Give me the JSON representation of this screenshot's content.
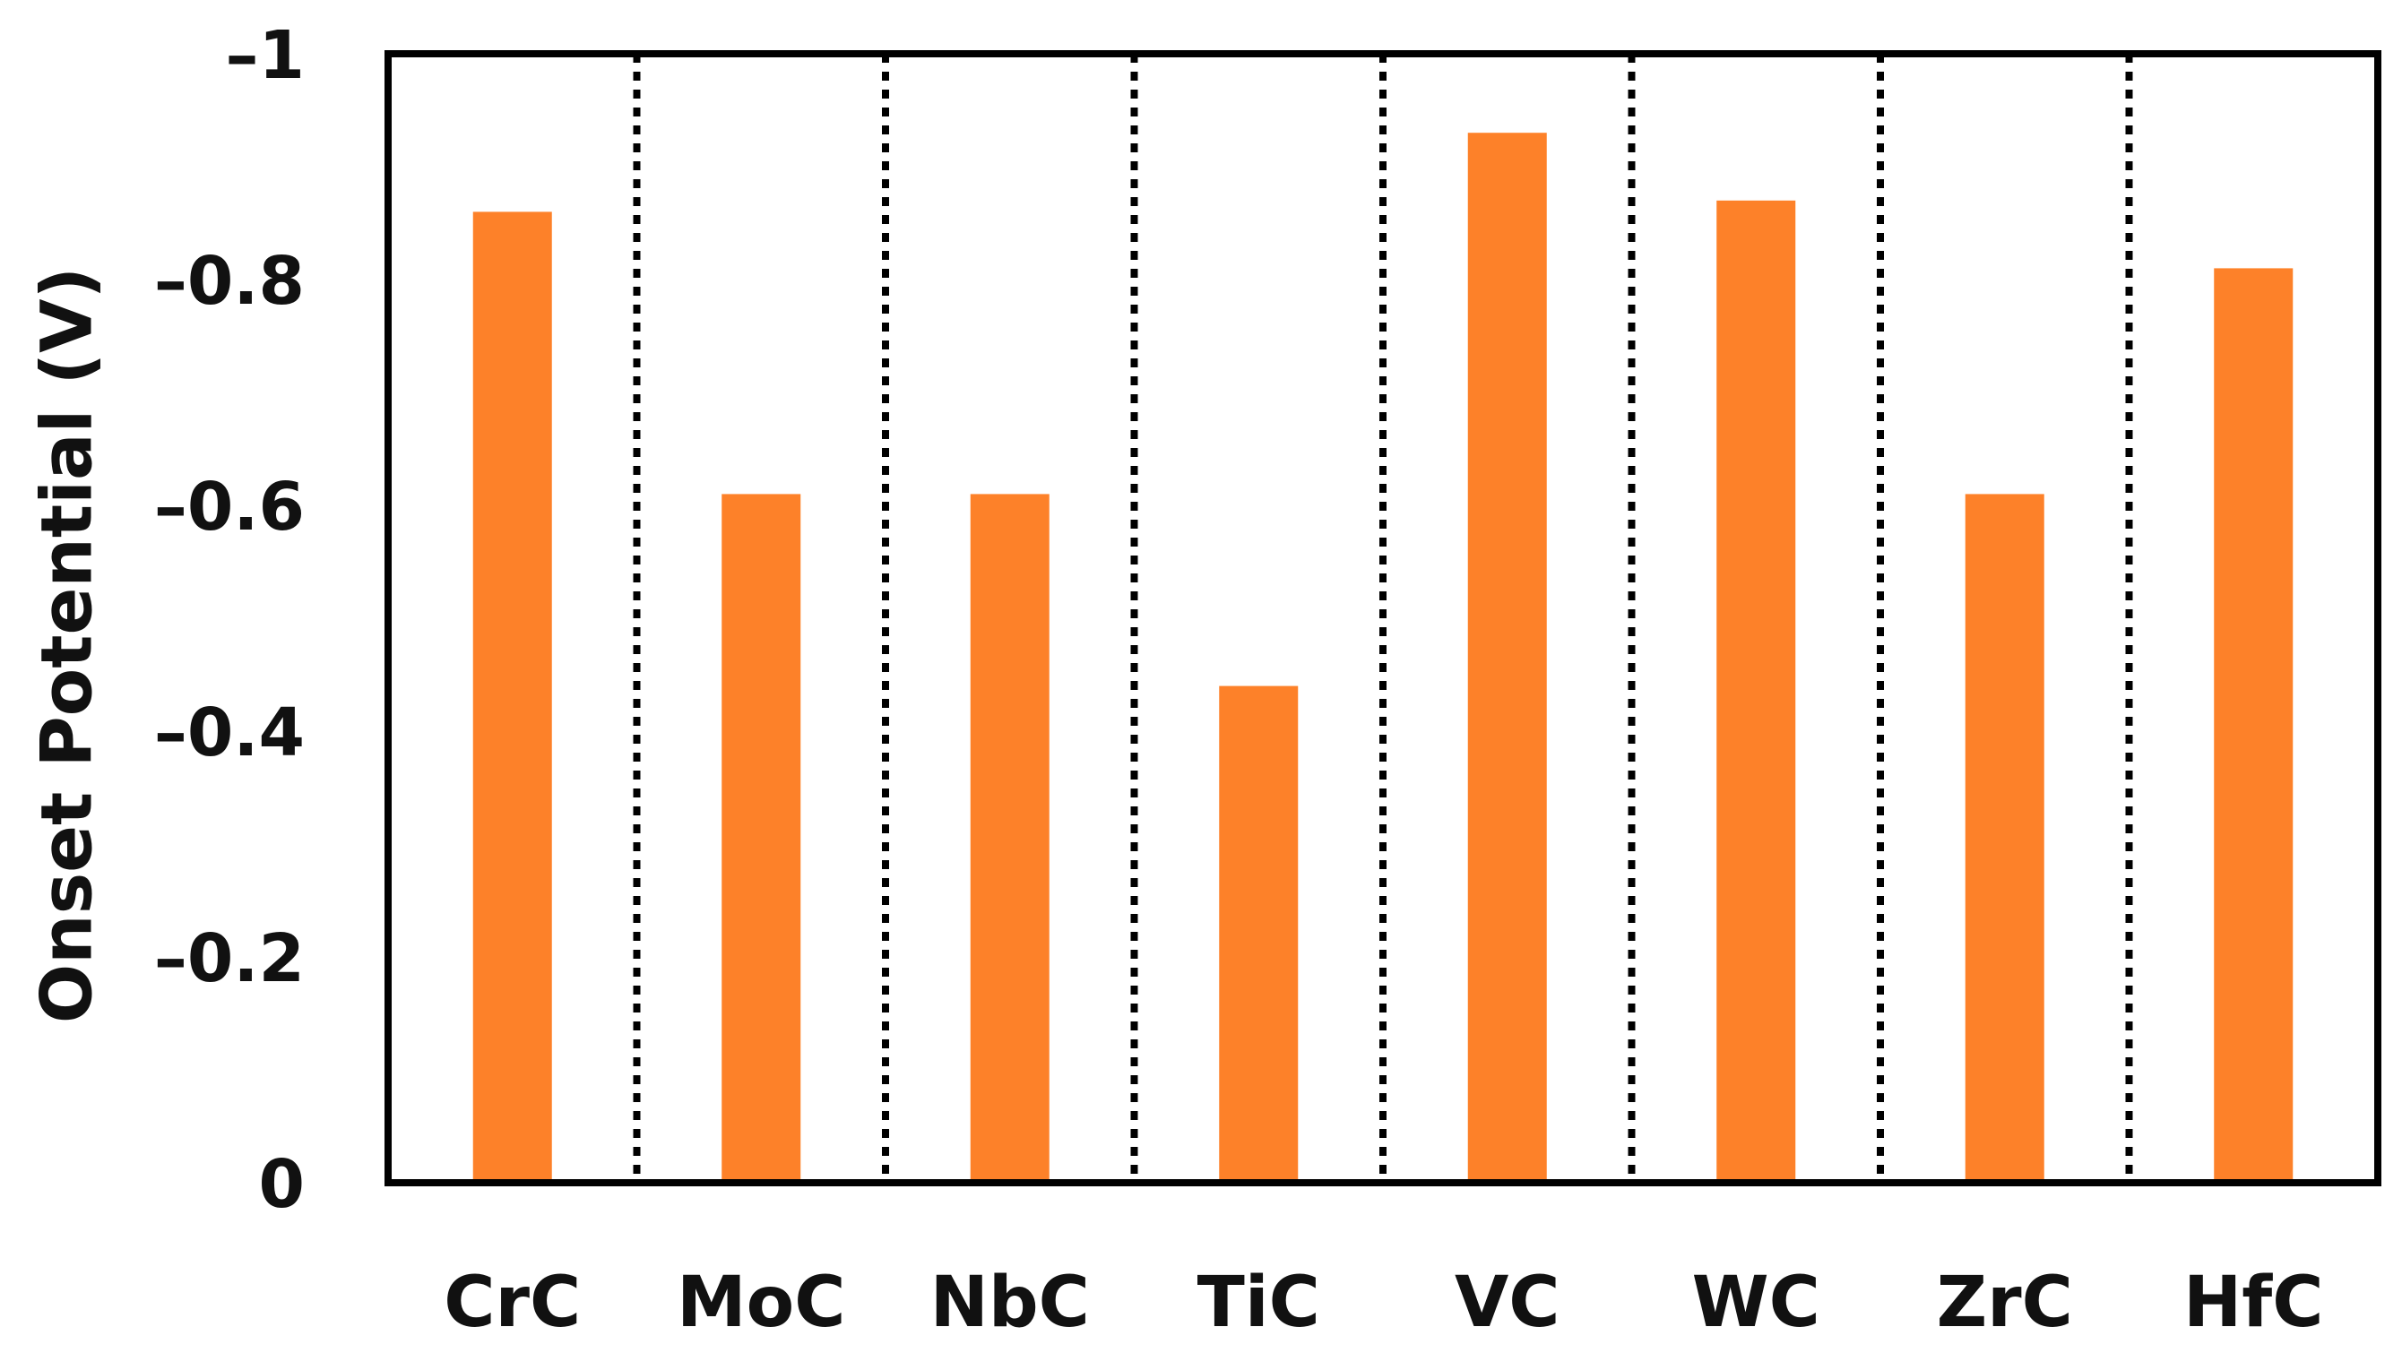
{
  "chart_data": {
    "type": "bar",
    "title": "",
    "xlabel": "",
    "ylabel": "Onset Potential (V)",
    "categories": [
      "CrC",
      "MoC",
      "NbC",
      "TiC",
      "VC",
      "WC",
      "ZrC",
      "HfC"
    ],
    "values": [
      -0.86,
      -0.61,
      -0.61,
      -0.44,
      -0.93,
      -0.87,
      -0.61,
      -0.81
    ],
    "ylim": [
      0,
      -1
    ],
    "yticks": [
      0,
      -0.2,
      -0.4,
      -0.6,
      -0.8,
      -1
    ],
    "ytick_labels": [
      "0",
      "–0.2",
      "–0.4",
      "–0.6",
      "–0.8",
      "–1"
    ],
    "y_axis_inverted": true,
    "grid": false,
    "category_separators": "dotted vertical lines",
    "bar_color": "#FD8129",
    "axis_color": "#000000"
  }
}
